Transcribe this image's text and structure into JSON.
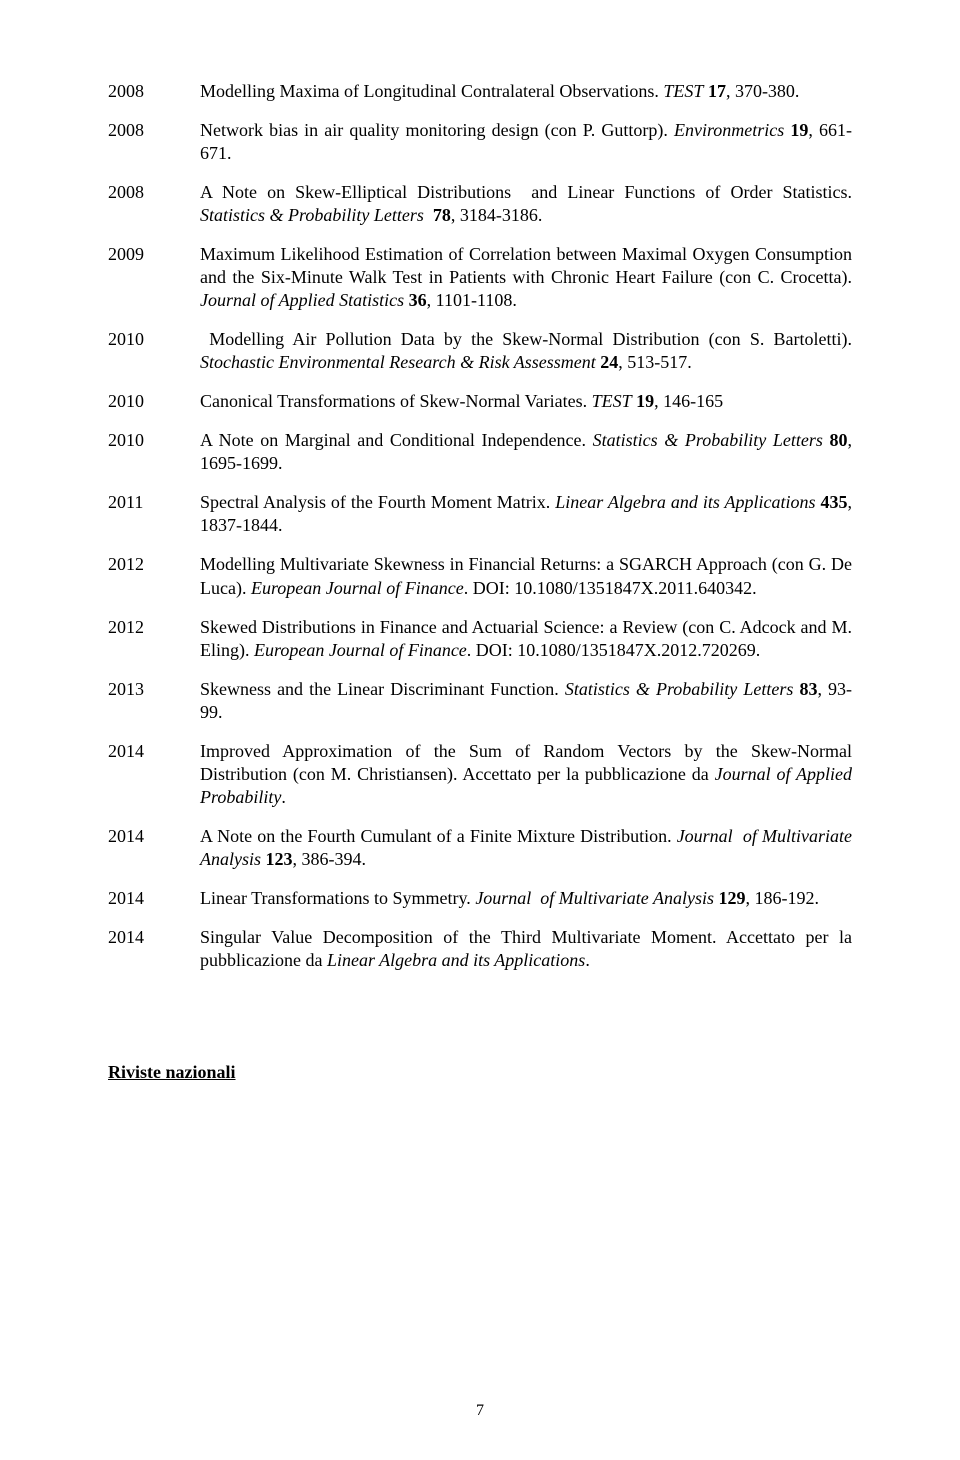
{
  "entries": [
    {
      "year": "2008",
      "html": "Modelling Maxima of Longitudinal Contralateral Observations. <span class='italic'>TEST</span> <span class='bold'>17</span>, 370-380."
    },
    {
      "year": "2008",
      "html": "Network bias in air quality monitoring design (con P. Guttorp). <span class='italic'>Environmetrics</span> <span class='bold'>19</span>, 661-671."
    },
    {
      "year": "2008",
      "html": "A Note on Skew-Elliptical Distributions&nbsp;&nbsp;and Linear Functions of Order Statistics. <span class='italic'>Statistics &amp; Probability Letters</span>&nbsp; <span class='bold'>78</span>, 3184-3186."
    },
    {
      "year": "2009",
      "html": "Maximum Likelihood Estimation of Correlation between Maximal Oxygen Consumption and the Six-Minute Walk Test in Patients with Chronic Heart Failure (con C. Crocetta). <span class='italic'>Journal of Applied Statistics</span> <span class='bold'>36</span>, 1101-1108."
    },
    {
      "year": "2010",
      "html": "&nbsp;Modelling Air Pollution Data by the Skew-Normal Distribution (con S. Bartoletti). <span class='italic'>Stochastic Environmental Research &amp; Risk Assessment</span> <span class='bold'>24</span>, 513-517."
    },
    {
      "year": "2010",
      "html": "Canonical Transformations of Skew-Normal Variates. <span class='italic'>TEST</span> <span class='bold'>19</span>, 146-165"
    },
    {
      "year": "2010",
      "html": "A Note on Marginal and Conditional Independence. <span class='italic'>Statistics &amp; Probability Letters</span> <span class='bold'>80</span>, 1695-1699."
    },
    {
      "year": "2011",
      "html": "Spectral Analysis of the Fourth Moment Matrix. <span class='italic'>Linear Algebra and its Applications</span> <span class='bold'>435</span>, 1837-1844."
    },
    {
      "year": "2012",
      "html": "Modelling Multivariate Skewness in Financial Returns: a SGARCH Approach (con G. De Luca). <span class='italic'>European Journal of Finance</span>. DOI: 10.1080/1351847X.2011.640342."
    },
    {
      "year": "2012",
      "html": "Skewed Distributions in Finance and Actuarial Science: a Review (con C. Adcock and M. Eling). <span class='italic'>European Journal of Finance</span>. DOI: 10.1080/1351847X.2012.720269."
    },
    {
      "year": "2013",
      "html": "Skewness and the Linear Discriminant Function. <span class='italic'>Statistics &amp; Probability Letters</span> <span class='bold'>83</span>, 93-99."
    },
    {
      "year": "2014",
      "html": "Improved Approximation of the Sum of Random Vectors by the Skew-Normal Distribution (con M. Christiansen). Accettato per la pubblicazione da <span class='italic'>Journal of Applied Probability</span>."
    },
    {
      "year": "2014",
      "html": "A Note on the Fourth Cumulant of a Finite Mixture Distribution. <span class='italic'>Journal&nbsp;&nbsp;of Multivariate Analysis</span> <span class='bold'>123</span>, 386-394."
    },
    {
      "year": "2014",
      "html": "Linear Transformations to Symmetry. <span class='italic'>Journal&nbsp;&nbsp;of Multivariate Analysis</span> <span class='bold'>129</span>, 186-192."
    },
    {
      "year": "2014",
      "html": "Singular Value Decomposition of the Third Multivariate Moment. Accettato per la pubblicazione da <span class='italic'>Linear Algebra and its Applications</span>."
    }
  ],
  "section_heading": "Riviste nazionali",
  "page_number": "7"
}
